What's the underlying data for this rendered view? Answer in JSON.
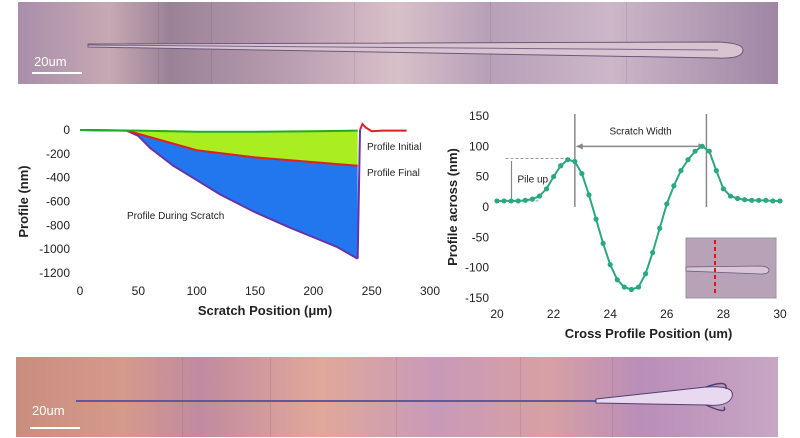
{
  "micrograph_top": {
    "scale_label": "20um"
  },
  "micrograph_bottom": {
    "scale_label": "20um"
  },
  "chart_data": [
    {
      "type": "area",
      "xlabel": "Scratch Position (μm)",
      "ylabel": "Profile (nm)",
      "xlim": [
        0,
        300
      ],
      "ylim": [
        -1200,
        0
      ],
      "xticks": [
        0,
        50,
        100,
        150,
        200,
        250,
        300
      ],
      "yticks": [
        0,
        -200,
        -400,
        -600,
        -800,
        -1000,
        -1200
      ],
      "grid": false,
      "series": [
        {
          "name": "Profile Initial",
          "color": "#22aa22",
          "fill": "#aaee22",
          "x": [
            0,
            50,
            100,
            150,
            200,
            238
          ],
          "y": [
            0,
            -5,
            -15,
            -15,
            -10,
            -5
          ]
        },
        {
          "name": "Profile Final",
          "color": "#dd2222",
          "fill": "#aaee22",
          "x": [
            0,
            40,
            60,
            100,
            150,
            200,
            238
          ],
          "y": [
            0,
            -5,
            -60,
            -170,
            -230,
            -270,
            -300
          ]
        },
        {
          "name": "Profile During Scratch",
          "color": "#6633aa",
          "fill": "#2277ee",
          "x": [
            0,
            40,
            50,
            60,
            80,
            100,
            120,
            150,
            180,
            200,
            220,
            238
          ],
          "y": [
            0,
            -5,
            -50,
            -150,
            -300,
            -420,
            -540,
            -690,
            -820,
            -900,
            -980,
            -1080
          ]
        }
      ],
      "tail": {
        "x": [
          240,
          242,
          245,
          250,
          260,
          280
        ],
        "y": [
          0,
          50,
          20,
          -10,
          -5,
          -5
        ]
      }
    },
    {
      "type": "line",
      "xlabel": "Cross Profile Position (um)",
      "ylabel": "Profile across (nm)",
      "xlim": [
        20,
        30
      ],
      "ylim": [
        -150,
        150
      ],
      "xticks": [
        20,
        22,
        24,
        26,
        28,
        30
      ],
      "yticks": [
        150,
        100,
        50,
        0,
        -50,
        -100,
        -150
      ],
      "grid": false,
      "series": [
        {
          "color": "#2aa882",
          "x": [
            20,
            20.25,
            20.5,
            20.75,
            21,
            21.25,
            21.5,
            21.75,
            22,
            22.25,
            22.5,
            22.75,
            23,
            23.25,
            23.5,
            23.75,
            24,
            24.25,
            24.5,
            24.75,
            25,
            25.25,
            25.5,
            25.75,
            26,
            26.25,
            26.5,
            26.75,
            27,
            27.25,
            27.5,
            27.75,
            28,
            28.25,
            28.5,
            28.75,
            29,
            29.25,
            29.5,
            29.75,
            30
          ],
          "y": [
            10,
            10,
            10,
            10,
            11,
            13,
            18,
            30,
            50,
            68,
            78,
            75,
            55,
            20,
            -20,
            -60,
            -95,
            -120,
            -132,
            -136,
            -132,
            -110,
            -75,
            -35,
            5,
            35,
            60,
            78,
            92,
            100,
            92,
            60,
            30,
            18,
            14,
            12,
            11,
            11,
            11,
            10,
            10
          ]
        }
      ],
      "annotations": {
        "scratch_width": "Scratch Width",
        "pile_up": "Pile up"
      }
    }
  ],
  "chart1_labels": {
    "initial": "Profile Initial",
    "final": "Profile Final",
    "during": "Profile During Scratch"
  }
}
